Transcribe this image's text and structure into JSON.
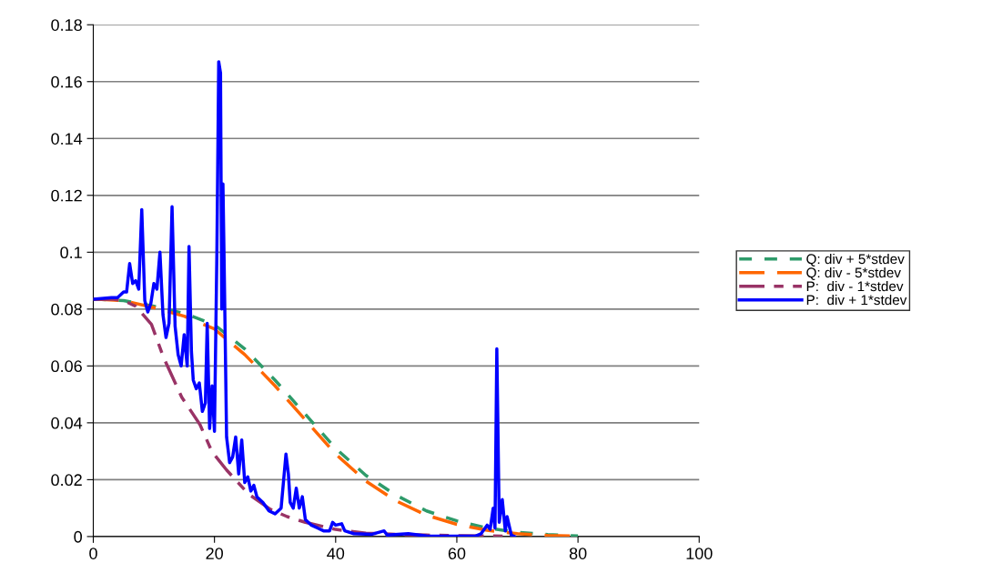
{
  "chart_data": {
    "type": "line",
    "xlim": [
      0,
      100
    ],
    "ylim": [
      0,
      0.18
    ],
    "xticks": [
      0,
      20,
      40,
      60,
      80,
      100
    ],
    "yticks": [
      {
        "value": 0,
        "label": "0"
      },
      0.02,
      0.04,
      0.06,
      0.08,
      0.1,
      0.12,
      0.14,
      0.16,
      0.18
    ],
    "grid": "y",
    "legend": "right",
    "marker": "none",
    "series": [
      {
        "name": "Q: div + 5*stdev",
        "color": "#2e9b6a",
        "line_style": "dashed",
        "x": [
          0,
          5,
          10,
          15,
          20,
          25,
          30,
          35,
          40,
          45,
          50,
          55,
          60,
          65,
          70,
          75,
          80
        ],
        "values": [
          0.0835,
          0.083,
          0.081,
          0.0785,
          0.0745,
          0.066,
          0.055,
          0.043,
          0.031,
          0.0215,
          0.0145,
          0.009,
          0.0055,
          0.003,
          0.0015,
          0.0007,
          0.0002
        ]
      },
      {
        "name": "Q: div - 5*stdev",
        "color": "#ff6600",
        "line_style": "dashed",
        "x": [
          0,
          5,
          10,
          15,
          20,
          25,
          30,
          35,
          40,
          45,
          50,
          55,
          60,
          65,
          70,
          75,
          80
        ],
        "values": [
          0.0835,
          0.083,
          0.0805,
          0.0775,
          0.073,
          0.064,
          0.053,
          0.041,
          0.029,
          0.0195,
          0.0125,
          0.0075,
          0.0043,
          0.0022,
          0.001,
          0.0004,
          0.0001
        ]
      },
      {
        "name": "P:  div - 1*stdev",
        "color": "#993366",
        "line_style": "dashed",
        "x": [
          0,
          3,
          5,
          7,
          9.6,
          11.6,
          14.6,
          17.6,
          19.6,
          22,
          25.6,
          29.2,
          32,
          35,
          40,
          45,
          50,
          55,
          60,
          65,
          69
        ],
        "values": [
          0.0835,
          0.0835,
          0.083,
          0.081,
          0.0746,
          0.063,
          0.049,
          0.0394,
          0.0298,
          0.0234,
          0.015,
          0.0096,
          0.007,
          0.005,
          0.0025,
          0.0012,
          0.0008,
          0.0005,
          0.0003,
          0.0002,
          0.0001
        ]
      },
      {
        "name": "P:  div + 1*stdev",
        "color": "#0000ff",
        "line_style": "solid",
        "x": [
          0,
          3,
          4,
          5,
          5.5,
          6,
          6.5,
          7,
          7.5,
          8,
          8.5,
          9,
          9.5,
          10,
          10.5,
          11,
          11.5,
          12,
          12.5,
          13,
          13.5,
          14,
          14.5,
          15,
          15.5,
          15.8,
          16.2,
          16.5,
          17,
          17.5,
          18,
          18.5,
          18.8,
          19.2,
          19.6,
          20,
          20.4,
          20.7,
          21.0,
          21.2,
          21.4,
          21.6,
          22,
          22.5,
          23,
          23.5,
          24,
          24.5,
          25,
          25.5,
          26,
          26.5,
          27,
          28,
          29,
          30,
          31,
          31.8,
          32.2,
          32.5,
          33,
          33.5,
          34,
          34.5,
          35,
          36,
          37,
          38,
          39,
          39.5,
          40,
          41,
          41.5,
          43,
          46,
          48,
          48.5,
          52,
          55,
          60,
          63,
          64,
          65,
          65.5,
          66,
          66.3,
          66.6,
          67,
          67.5,
          68,
          68.3,
          69,
          69.5
        ],
        "values": [
          0.0835,
          0.084,
          0.084,
          0.086,
          0.086,
          0.096,
          0.089,
          0.09,
          0.087,
          0.115,
          0.083,
          0.079,
          0.082,
          0.089,
          0.087,
          0.1,
          0.078,
          0.07,
          0.075,
          0.116,
          0.074,
          0.064,
          0.06,
          0.071,
          0.06,
          0.102,
          0.065,
          0.055,
          0.052,
          0.054,
          0.044,
          0.047,
          0.075,
          0.038,
          0.053,
          0.037,
          0.1,
          0.167,
          0.163,
          0.08,
          0.124,
          0.096,
          0.035,
          0.026,
          0.028,
          0.035,
          0.022,
          0.034,
          0.019,
          0.021,
          0.016,
          0.018,
          0.014,
          0.012,
          0.009,
          0.008,
          0.01,
          0.029,
          0.022,
          0.012,
          0.01,
          0.017,
          0.01,
          0.014,
          0.006,
          0.004,
          0.003,
          0.002,
          0.002,
          0.005,
          0.004,
          0.0045,
          0.002,
          0.001,
          0.0008,
          0.002,
          0.0005,
          0.001,
          0.0002,
          0.0001,
          0.0001,
          0.001,
          0.004,
          0.0025,
          0.01,
          0.003,
          0.066,
          0.005,
          0.013,
          0.002,
          0.007,
          0.0005,
          0
        ]
      }
    ]
  }
}
